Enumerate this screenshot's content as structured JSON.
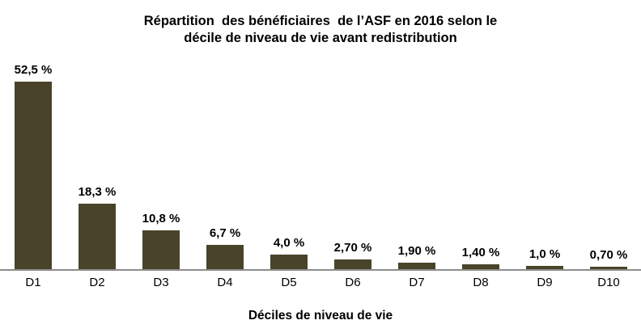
{
  "chart_data": {
    "type": "bar",
    "title": "Répartition  des bénéficiaires  de l’ASF en 2016 selon le\ndécile de niveau de vie avant redistribution",
    "categories": [
      "D1",
      "D2",
      "D3",
      "D4",
      "D5",
      "D6",
      "D7",
      "D8",
      "D9",
      "D10"
    ],
    "values": [
      52.5,
      18.3,
      10.8,
      6.7,
      4.0,
      2.7,
      1.9,
      1.4,
      1.0,
      0.7
    ],
    "value_labels": [
      "52,5 %",
      "18,3 %",
      "10,8 %",
      "6,7 %",
      "4,0 %",
      "2,70 %",
      "1,90 %",
      "1,40 %",
      "1,0 %",
      "0,70 %"
    ],
    "xlabel": "Déciles de niveau de vie",
    "ylabel": "",
    "ylim": [
      0,
      55
    ],
    "grid": false,
    "legend": "none",
    "bar_color": "#494429",
    "axis_line_color": "#8c8c8c",
    "text_color": "#000000",
    "background_color": "#ffffff"
  }
}
